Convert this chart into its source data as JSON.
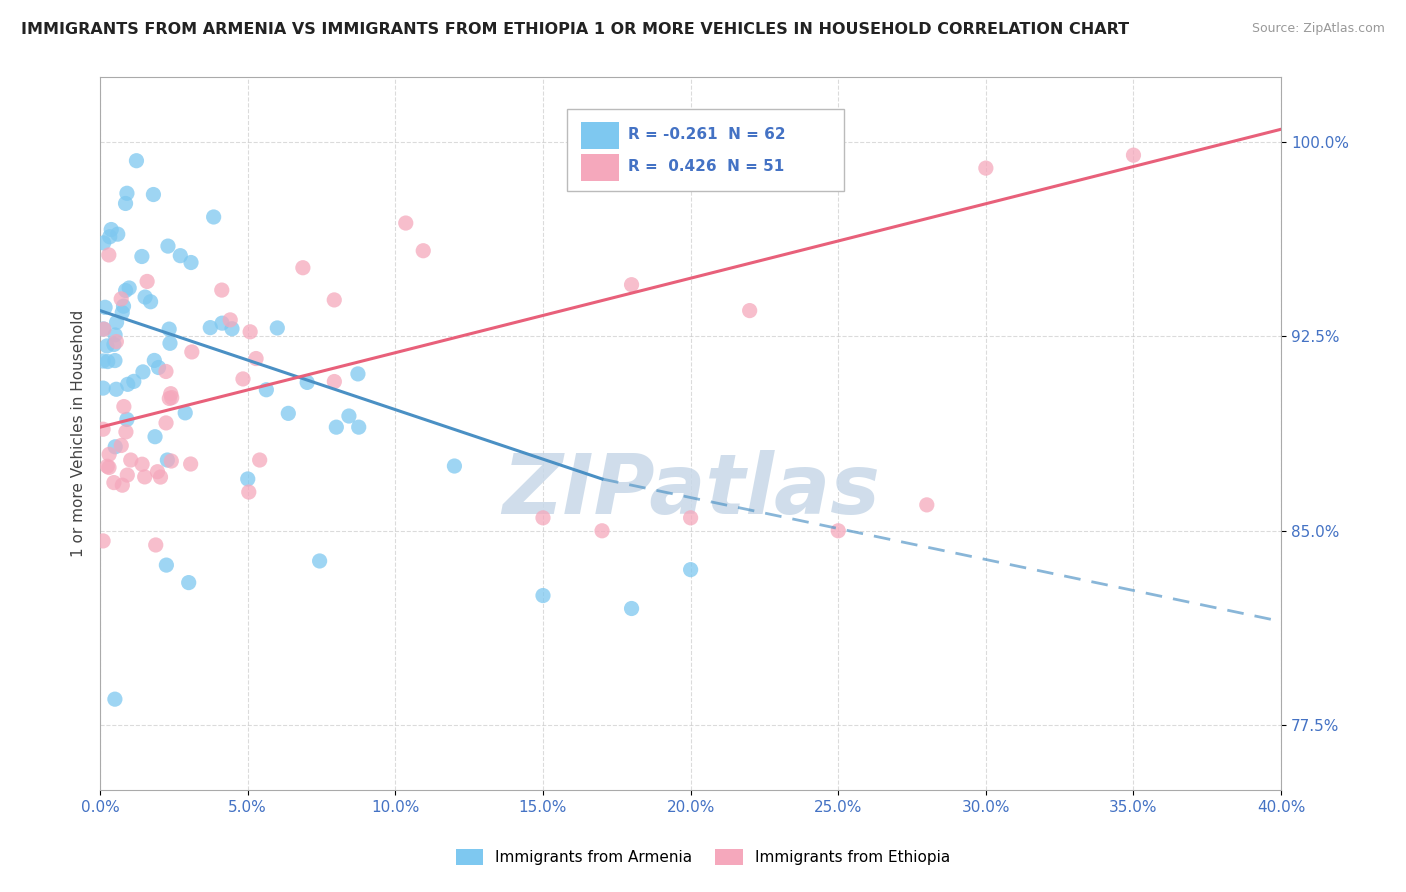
{
  "title": "IMMIGRANTS FROM ARMENIA VS IMMIGRANTS FROM ETHIOPIA 1 OR MORE VEHICLES IN HOUSEHOLD CORRELATION CHART",
  "source": "Source: ZipAtlas.com",
  "xmin": 0.0,
  "xmax": 40.0,
  "ymin": 75.0,
  "ymax": 102.5,
  "yticks": [
    77.5,
    85.0,
    92.5,
    100.0
  ],
  "xticks": [
    0.0,
    5.0,
    10.0,
    15.0,
    20.0,
    25.0,
    30.0,
    35.0,
    40.0
  ],
  "armenia_color": "#7EC8F0",
  "ethiopia_color": "#F5A8BC",
  "armenia_R": -0.261,
  "armenia_N": 62,
  "ethiopia_R": 0.426,
  "ethiopia_N": 51,
  "armenia_line_color": "#4A90C4",
  "ethiopia_line_color": "#E8607A",
  "watermark": "ZIPatlas",
  "watermark_color": "#C8D8E8",
  "legend_label_armenia": "Immigrants from Armenia",
  "legend_label_ethiopia": "Immigrants from Ethiopia",
  "armenia_line_x0": 0.0,
  "armenia_line_y0": 93.5,
  "armenia_line_x1": 17.0,
  "armenia_line_y1": 87.0,
  "armenia_dash_x0": 17.0,
  "armenia_dash_y0": 87.0,
  "armenia_dash_x1": 40.0,
  "armenia_dash_y1": 81.5,
  "ethiopia_line_x0": 0.0,
  "ethiopia_line_y0": 89.0,
  "ethiopia_line_x1": 40.0,
  "ethiopia_line_y1": 100.5
}
